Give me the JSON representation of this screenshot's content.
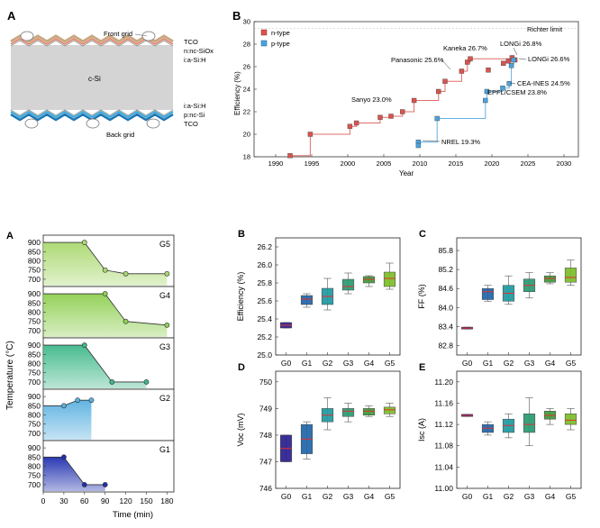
{
  "figure_top": {
    "panel_a": {
      "letter": "A",
      "labels_top": [
        "Front grid",
        "TCO",
        "n:nc-SiOx",
        "i:a-Si:H"
      ],
      "center_label": "c-Si",
      "labels_bottom": [
        "i:a-Si:H",
        "p:nc-Si",
        "TCO",
        "Back grid"
      ]
    },
    "panel_b": {
      "letter": "B",
      "ylabel": "Efficiency (%)",
      "xlabel": "Year",
      "limit_label": "Richter limit",
      "legend": [
        "n-type",
        "p-type"
      ],
      "annotations": [
        "Kaneka 26.7%",
        "LONGi 26.8%",
        "Panasonic 25.6%",
        "LONGi 26.6%",
        "Sanyo 23.0%",
        "CEA-INES 24.5%",
        "EPFL/CSEM 23.8%",
        "NREL 19.3%"
      ],
      "xticks": [
        "1990",
        "1995",
        "2000",
        "2005",
        "2010",
        "2015",
        "2020",
        "2025",
        "2030"
      ],
      "yticks": [
        "18",
        "20",
        "22",
        "24",
        "26",
        "28",
        "30"
      ]
    }
  },
  "figure_bottom": {
    "panel_a": {
      "letter": "A",
      "ylabel": "Temperature (°C)",
      "xlabel": "Time (min)",
      "xticks": [
        "0",
        "30",
        "60",
        "90",
        "120",
        "150",
        "180"
      ],
      "rows": [
        {
          "name": "G5",
          "yticks": [
            "900",
            "850",
            "800",
            "750",
            "700"
          ]
        },
        {
          "name": "G4",
          "yticks": [
            "900",
            "850",
            "800",
            "750",
            "700"
          ]
        },
        {
          "name": "G3",
          "yticks": [
            "900",
            "850",
            "800",
            "750",
            "700"
          ]
        },
        {
          "name": "G2",
          "yticks": [
            "900",
            "850",
            "800",
            "750",
            "700"
          ]
        },
        {
          "name": "G1",
          "yticks": [
            "900",
            "850",
            "800",
            "750",
            "700"
          ]
        }
      ]
    },
    "box_panels": [
      {
        "letter": "B",
        "ylabel": "Efficiency (%)",
        "yticks": [
          "25.0",
          "25.2",
          "25.4",
          "25.6",
          "25.8",
          "26.0",
          "26.2"
        ]
      },
      {
        "letter": "C",
        "ylabel": "FF (%)",
        "yticks": [
          "82.8",
          "83.4",
          "84.0",
          "84.6",
          "85.2",
          "85.8"
        ]
      },
      {
        "letter": "D",
        "ylabel": "Voc (mV)",
        "yticks": [
          "746",
          "747",
          "748",
          "749",
          "750"
        ]
      },
      {
        "letter": "E",
        "ylabel": "Isc (A)",
        "yticks": [
          "11.00",
          "11.04",
          "11.08",
          "11.12",
          "11.16",
          "11.20"
        ]
      }
    ],
    "groups": [
      "G0",
      "G1",
      "G2",
      "G3",
      "G4",
      "G5"
    ]
  },
  "chart_data": [
    {
      "type": "line",
      "title": "",
      "xlabel": "Year",
      "ylabel": "Efficiency (%)",
      "xlim": [
        1987,
        2032
      ],
      "ylim": [
        18,
        30
      ],
      "grid": false,
      "legend_placement": "top-left",
      "reference_lines": [
        {
          "label": "Richter limit",
          "y": 29.4
        }
      ],
      "series": [
        {
          "name": "n-type",
          "color": "#d9534f",
          "points": [
            [
              1992,
              18.1
            ],
            [
              1994.8,
              20.0
            ],
            [
              2000.3,
              20.7
            ],
            [
              2001.2,
              21.0
            ],
            [
              2004.5,
              21.5
            ],
            [
              2006,
              21.6
            ],
            [
              2007.6,
              22.0
            ],
            [
              2009.2,
              23.0
            ],
            [
              2012.6,
              23.8
            ],
            [
              2013.5,
              24.7
            ],
            [
              2015.8,
              25.6
            ],
            [
              2016.6,
              26.4
            ],
            [
              2017,
              26.7
            ],
            [
              2019.5,
              25.7
            ],
            [
              2021.6,
              26.3
            ],
            [
              2022.3,
              26.5
            ],
            [
              2022.8,
              26.8
            ],
            [
              2023.2,
              26.6
            ]
          ]
        },
        {
          "name": "p-type",
          "color": "#4aa3df",
          "points": [
            [
              2009.8,
              19.3
            ],
            [
              2009.8,
              19.0
            ],
            [
              2012.4,
              21.4
            ],
            [
              2019.1,
              23.0
            ],
            [
              2019.3,
              23.8
            ],
            [
              2021.5,
              24.1
            ],
            [
              2022.4,
              24.5
            ],
            [
              2022.7,
              26.1
            ],
            [
              2023,
              26.6
            ]
          ]
        }
      ]
    },
    {
      "type": "area",
      "title": "",
      "xlabel": "Time (min)",
      "ylabel": "Temperature (°C)",
      "xlim": [
        0,
        190
      ],
      "ylim": [
        680,
        920
      ],
      "series": [
        {
          "name": "G5",
          "color": "#a9d86e",
          "points": [
            [
              0,
              900
            ],
            [
              60,
              900
            ],
            [
              90,
              750
            ],
            [
              120,
              730
            ],
            [
              180,
              730
            ]
          ]
        },
        {
          "name": "G4",
          "color": "#8fcf52",
          "points": [
            [
              0,
              900
            ],
            [
              90,
              900
            ],
            [
              120,
              750
            ],
            [
              180,
              730
            ]
          ]
        },
        {
          "name": "G3",
          "color": "#3fb88a",
          "points": [
            [
              0,
              900
            ],
            [
              60,
              900
            ],
            [
              100,
              700
            ],
            [
              150,
              700
            ]
          ]
        },
        {
          "name": "G2",
          "color": "#5ab0e0",
          "points": [
            [
              0,
              850
            ],
            [
              30,
              850
            ],
            [
              50,
              880
            ],
            [
              70,
              880
            ]
          ]
        },
        {
          "name": "G1",
          "color": "#1f2fae",
          "points": [
            [
              0,
              850
            ],
            [
              30,
              850
            ],
            [
              60,
              700
            ],
            [
              90,
              700
            ]
          ]
        }
      ]
    },
    {
      "type": "box",
      "ylabel": "Efficiency (%)",
      "categories": [
        "G0",
        "G1",
        "G2",
        "G3",
        "G4",
        "G5"
      ],
      "ylim": [
        25.0,
        26.3
      ],
      "boxes": [
        {
          "q1": 25.3,
          "median": 25.33,
          "q3": 25.36,
          "min": 25.3,
          "max": 25.36
        },
        {
          "q1": 25.56,
          "median": 25.62,
          "q3": 25.66,
          "min": 25.53,
          "max": 25.68
        },
        {
          "q1": 25.56,
          "median": 25.65,
          "q3": 25.74,
          "min": 25.5,
          "max": 25.85
        },
        {
          "q1": 25.72,
          "median": 25.76,
          "q3": 25.84,
          "min": 25.68,
          "max": 25.91
        },
        {
          "q1": 25.8,
          "median": 25.84,
          "q3": 25.87,
          "min": 25.76,
          "max": 25.88
        },
        {
          "q1": 25.76,
          "median": 25.85,
          "q3": 25.92,
          "min": 25.73,
          "max": 26.02
        }
      ]
    },
    {
      "type": "box",
      "ylabel": "FF (%)",
      "categories": [
        "G0",
        "G1",
        "G2",
        "G3",
        "G4",
        "G5"
      ],
      "ylim": [
        82.5,
        86.2
      ],
      "boxes": [
        {
          "q1": 83.32,
          "median": 83.35,
          "q3": 83.38,
          "min": 83.32,
          "max": 83.38
        },
        {
          "q1": 84.25,
          "median": 84.5,
          "q3": 84.6,
          "min": 84.2,
          "max": 84.7
        },
        {
          "q1": 84.2,
          "median": 84.45,
          "q3": 84.7,
          "min": 84.1,
          "max": 85.0
        },
        {
          "q1": 84.5,
          "median": 84.7,
          "q3": 84.9,
          "min": 84.3,
          "max": 85.1
        },
        {
          "q1": 84.8,
          "median": 84.92,
          "q3": 85.0,
          "min": 84.75,
          "max": 85.1
        },
        {
          "q1": 84.8,
          "median": 84.95,
          "q3": 85.25,
          "min": 84.7,
          "max": 85.5
        }
      ]
    },
    {
      "type": "box",
      "ylabel": "Voc (mV)",
      "categories": [
        "G0",
        "G1",
        "G2",
        "G3",
        "G4",
        "G5"
      ],
      "ylim": [
        746,
        750.4
      ],
      "boxes": [
        {
          "q1": 747.0,
          "median": 747.5,
          "q3": 748.0,
          "min": 747.0,
          "max": 748.0
        },
        {
          "q1": 747.3,
          "median": 747.85,
          "q3": 748.4,
          "min": 747.1,
          "max": 748.5
        },
        {
          "q1": 748.5,
          "median": 748.75,
          "q3": 749.0,
          "min": 748.2,
          "max": 749.4
        },
        {
          "q1": 748.7,
          "median": 748.9,
          "q3": 749.0,
          "min": 748.5,
          "max": 749.2
        },
        {
          "q1": 748.75,
          "median": 748.9,
          "q3": 749.0,
          "min": 748.7,
          "max": 749.1
        },
        {
          "q1": 748.8,
          "median": 748.95,
          "q3": 749.05,
          "min": 748.7,
          "max": 749.2
        }
      ]
    },
    {
      "type": "box",
      "ylabel": "Isc (A)",
      "categories": [
        "G0",
        "G1",
        "G2",
        "G3",
        "G4",
        "G5"
      ],
      "ylim": [
        11.0,
        11.22
      ],
      "boxes": [
        {
          "q1": 11.135,
          "median": 11.137,
          "q3": 11.139,
          "min": 11.135,
          "max": 11.139
        },
        {
          "q1": 11.105,
          "median": 11.113,
          "q3": 11.12,
          "min": 11.1,
          "max": 11.125
        },
        {
          "q1": 11.105,
          "median": 11.118,
          "q3": 11.13,
          "min": 11.095,
          "max": 11.14
        },
        {
          "q1": 11.105,
          "median": 11.12,
          "q3": 11.14,
          "min": 11.08,
          "max": 11.17
        },
        {
          "q1": 11.13,
          "median": 11.137,
          "q3": 11.145,
          "min": 11.12,
          "max": 11.15
        },
        {
          "q1": 11.12,
          "median": 11.128,
          "q3": 11.14,
          "min": 11.11,
          "max": 11.15
        }
      ]
    }
  ]
}
